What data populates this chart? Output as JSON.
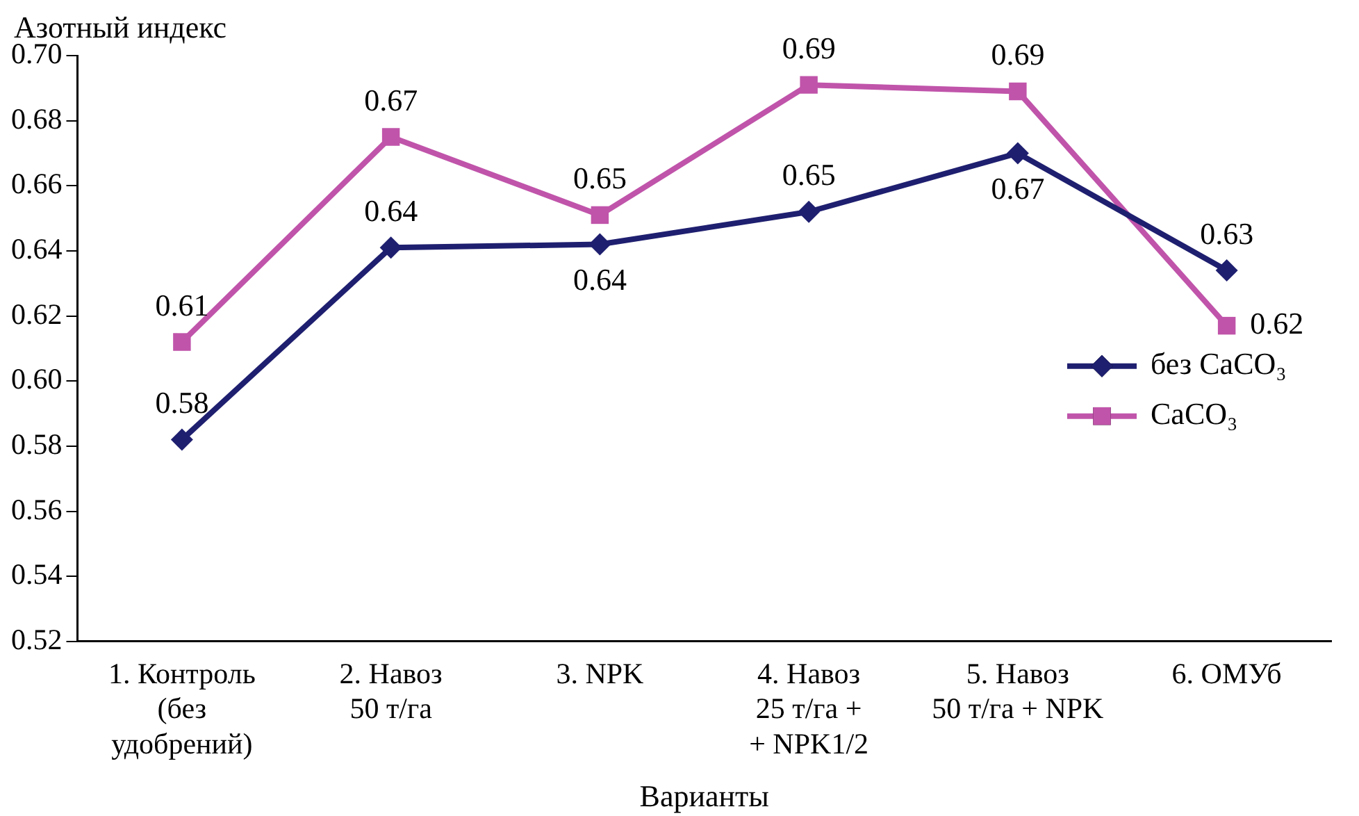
{
  "chart_data": {
    "type": "line",
    "xlabel": "Варианты",
    "ylabel": "Азотный индекс",
    "categories": [
      "1. Контроль\n(без\nудобрений)",
      "2. Навоз\n50 т/га",
      "3. NPK",
      "4. Навоз\n25 т/га +\n+ NPK1/2",
      "5. Навоз\n50 т/га + NPK",
      "6. ОМУб"
    ],
    "series": [
      {
        "name": "без CaCO₃",
        "color": "#1f1f70",
        "marker": "diamond",
        "values": [
          0.582,
          0.641,
          0.642,
          0.652,
          0.67,
          0.634
        ],
        "value_labels": [
          "0.58",
          "0.64",
          "0.64",
          "0.65",
          "0.67",
          "0.63"
        ]
      },
      {
        "name": "CaCO₃",
        "color": "#c054aa",
        "marker": "square",
        "values": [
          0.612,
          0.675,
          0.651,
          0.691,
          0.689,
          0.617
        ],
        "value_labels": [
          "0.61",
          "0.67",
          "0.65",
          "0.69",
          "0.69",
          "0.62"
        ]
      }
    ],
    "ylim": [
      0.52,
      0.7
    ],
    "yticks": [
      0.52,
      0.54,
      0.56,
      0.58,
      {
        "value": 0.6,
        "label": "0.60"
      },
      0.62,
      0.64,
      0.66,
      0.68,
      {
        "value": 0.7,
        "label": "0.70"
      }
    ],
    "grid": false,
    "legend": "bottom right",
    "line_style": "solid"
  }
}
